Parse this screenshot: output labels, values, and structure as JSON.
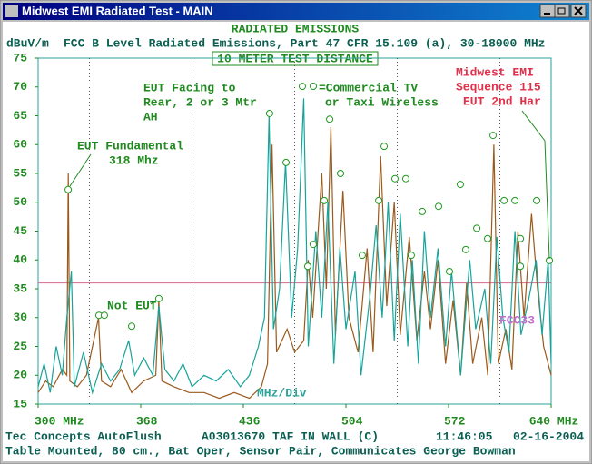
{
  "window": {
    "title": "Midwest EMI Radiated Test - MAIN"
  },
  "chart_data": {
    "type": "line",
    "title": "RADIATED EMISSIONS",
    "y_label": "dBuV/m",
    "subtitle": "FCC B Level Radiated Emissions, Part 47 CFR 15.109 (a), 30-18000 MHz",
    "distance": "10 METER TEST DISTANCE",
    "xlim": [
      300,
      640
    ],
    "ylim": [
      15,
      75
    ],
    "xticks": [
      {
        "value": 300,
        "label": "300 MHz"
      },
      368,
      436,
      504,
      572,
      {
        "value": 640,
        "label": "640 MHz"
      }
    ],
    "yticks": [
      15,
      20,
      25,
      30,
      35,
      40,
      45,
      50,
      55,
      60,
      65,
      70,
      75
    ],
    "grid": true,
    "limit": {
      "value": 36,
      "color": "#d4688a"
    },
    "series": [
      {
        "color": "#9a5a1c",
        "x": [
          300,
          305,
          310,
          316,
          319,
          320,
          321,
          326,
          332,
          340,
          342,
          348,
          355,
          362,
          370,
          378,
          380,
          382,
          390,
          400,
          410,
          420,
          430,
          440,
          448,
          452,
          455,
          458,
          465,
          470,
          476,
          479,
          482,
          488,
          491,
          494,
          497,
          502,
          506,
          512,
          518,
          522,
          527,
          531,
          536,
          540,
          546,
          551,
          556,
          560,
          565,
          570,
          575,
          580,
          584,
          588,
          594,
          598,
          602,
          605,
          610,
          614,
          618,
          622,
          627,
          631,
          635,
          640
        ],
        "values": [
          17,
          19,
          18,
          21,
          20,
          55,
          19,
          18,
          20,
          30,
          19,
          18,
          21,
          17,
          19,
          20,
          33,
          19,
          18,
          17,
          17,
          16,
          17,
          16,
          18,
          22,
          60,
          24,
          28,
          24,
          26,
          40,
          30,
          55,
          35,
          63,
          27,
          52,
          30,
          24,
          42,
          24,
          58,
          32,
          50,
          27,
          44,
          26,
          38,
          28,
          40,
          22,
          33,
          20,
          36,
          22,
          30,
          20,
          60,
          22,
          28,
          21,
          45,
          30,
          48,
          35,
          25,
          20
        ]
      },
      {
        "color": "#17a39a",
        "x": [
          300,
          304,
          308,
          312,
          316,
          319,
          322,
          324,
          330,
          336,
          342,
          348,
          354,
          360,
          364,
          370,
          376,
          380,
          384,
          390,
          396,
          402,
          410,
          418,
          426,
          434,
          440,
          446,
          450,
          453,
          456,
          460,
          464,
          468,
          472,
          476,
          479,
          484,
          488,
          492,
          496,
          500,
          504,
          510,
          514,
          520,
          524,
          528,
          532,
          536,
          540,
          545,
          548,
          552,
          556,
          560,
          565,
          570,
          574,
          580,
          586,
          590,
          596,
          600,
          604,
          608,
          612,
          616,
          620,
          625,
          630,
          634,
          638,
          640
        ],
        "values": [
          18,
          22,
          17,
          25,
          20,
          30,
          38,
          18,
          24,
          17,
          22,
          19,
          21,
          26,
          20,
          23,
          20,
          32,
          21,
          19,
          22,
          18,
          20,
          19,
          21,
          18,
          20,
          25,
          30,
          65,
          28,
          35,
          57,
          30,
          42,
          68,
          25,
          45,
          30,
          50,
          22,
          42,
          28,
          38,
          20,
          34,
          46,
          30,
          50,
          26,
          48,
          25,
          40,
          22,
          45,
          30,
          42,
          25,
          38,
          20,
          40,
          28,
          35,
          22,
          44,
          30,
          24,
          45,
          27,
          33,
          40,
          27,
          40,
          22
        ]
      }
    ],
    "markers": {
      "color": "#1f9a1f",
      "x": [
        319.9,
        340.3,
        343.9,
        362.0,
        380.0,
        453.4,
        464.3,
        475.1,
        478.7,
        482.3,
        489.6,
        493.2,
        500.4,
        514.8,
        525.7,
        529.3,
        536.5,
        543.7,
        547.3,
        554.6,
        565.4,
        572.6,
        579.8,
        583.4,
        590.7,
        597.9,
        601.5,
        608.8,
        616.0,
        619.6,
        619.6,
        630.4,
        638.8
      ],
      "values": [
        52.2,
        30.4,
        30.4,
        28.5,
        33.3,
        65.4,
        56.9,
        70.1,
        38.9,
        42.7,
        50.3,
        64.4,
        55.0,
        40.8,
        50.3,
        59.7,
        54.1,
        54.1,
        40.8,
        48.4,
        49.3,
        38.0,
        53.1,
        41.8,
        45.5,
        43.7,
        61.6,
        50.3,
        50.3,
        43.7,
        38.9,
        50.3,
        39.9
      ]
    },
    "annotations": {
      "facing": [
        "EUT Facing to",
        "Rear, 2 or 3 Mtr",
        "AH"
      ],
      "legend": [
        "=Commercial TV",
        "or Taxi Wireless"
      ],
      "fundamental": [
        "EUT Fundamental",
        "318 Mhz"
      ],
      "not_eut": "Not EUT",
      "sequence": [
        "Midwest EMI",
        "Sequence 115",
        "EUT 2nd Har"
      ],
      "limit_name": "FCC33",
      "scale": "MHz/Div"
    },
    "footer": [
      [
        "Tec Concepts AutoFlush",
        "A03013670 TAF IN WALL (C)",
        "11:46:05",
        "02-16-2004"
      ],
      [
        "Table Mounted, 80 cm., Bat Oper, Sensor Pair, Communicates George Bowman"
      ]
    ]
  }
}
